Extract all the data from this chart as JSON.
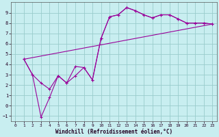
{
  "xlabel": "Windchill (Refroidissement éolien,°C)",
  "bg_color": "#c8eef0",
  "grid_color": "#99cccc",
  "line_color": "#990099",
  "xlim": [
    -0.5,
    23.5
  ],
  "ylim": [
    -1.5,
    10.0
  ],
  "xticks": [
    0,
    1,
    2,
    3,
    4,
    5,
    6,
    7,
    8,
    9,
    10,
    11,
    12,
    13,
    14,
    15,
    16,
    17,
    18,
    19,
    20,
    21,
    22,
    23
  ],
  "yticks": [
    -1,
    0,
    1,
    2,
    3,
    4,
    5,
    6,
    7,
    8,
    9
  ],
  "line1_x": [
    1,
    2,
    3,
    4,
    5,
    6,
    7,
    8,
    9,
    10,
    11,
    12,
    13,
    14,
    15,
    16,
    17,
    18,
    19,
    20,
    21,
    22,
    23
  ],
  "line1_y": [
    4.5,
    3.0,
    2.2,
    1.6,
    2.9,
    2.2,
    3.8,
    3.7,
    2.5,
    6.5,
    8.6,
    8.8,
    9.5,
    9.2,
    8.8,
    8.5,
    8.8,
    8.8,
    8.4,
    8.0,
    8.0,
    8.0,
    7.9
  ],
  "line2_x": [
    1,
    2,
    3,
    4,
    5,
    6,
    7,
    8,
    9,
    10,
    11,
    12,
    13,
    14,
    15,
    16,
    17,
    18,
    19,
    20,
    21,
    22,
    23
  ],
  "line2_y": [
    4.5,
    3.0,
    -1.1,
    0.8,
    2.9,
    2.2,
    2.9,
    3.7,
    2.5,
    6.5,
    8.6,
    8.8,
    9.5,
    9.2,
    8.8,
    8.5,
    8.8,
    8.8,
    8.4,
    8.0,
    8.0,
    8.0,
    7.9
  ],
  "line3_x": [
    1,
    23
  ],
  "line3_y": [
    4.5,
    7.9
  ]
}
